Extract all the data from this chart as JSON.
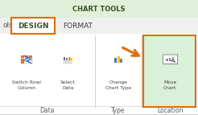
{
  "bg_color": "#f2f2f2",
  "top_bar_color": "#e2efda",
  "chart_tools_text": "CHART TOOLS",
  "chart_tools_color": "#375623",
  "design_text": "DESIGN",
  "format_text": "FORMAT",
  "design_color": "#375623",
  "format_color": "#404040",
  "design_box_color": "#e36c09",
  "arrow_color": "#e36c09",
  "highlight_color": "#d9f0d9",
  "highlight_border": "#e36c09",
  "separator_color": "#d0d0d0",
  "label_color": "#606060",
  "btn_label_color": "#404040"
}
